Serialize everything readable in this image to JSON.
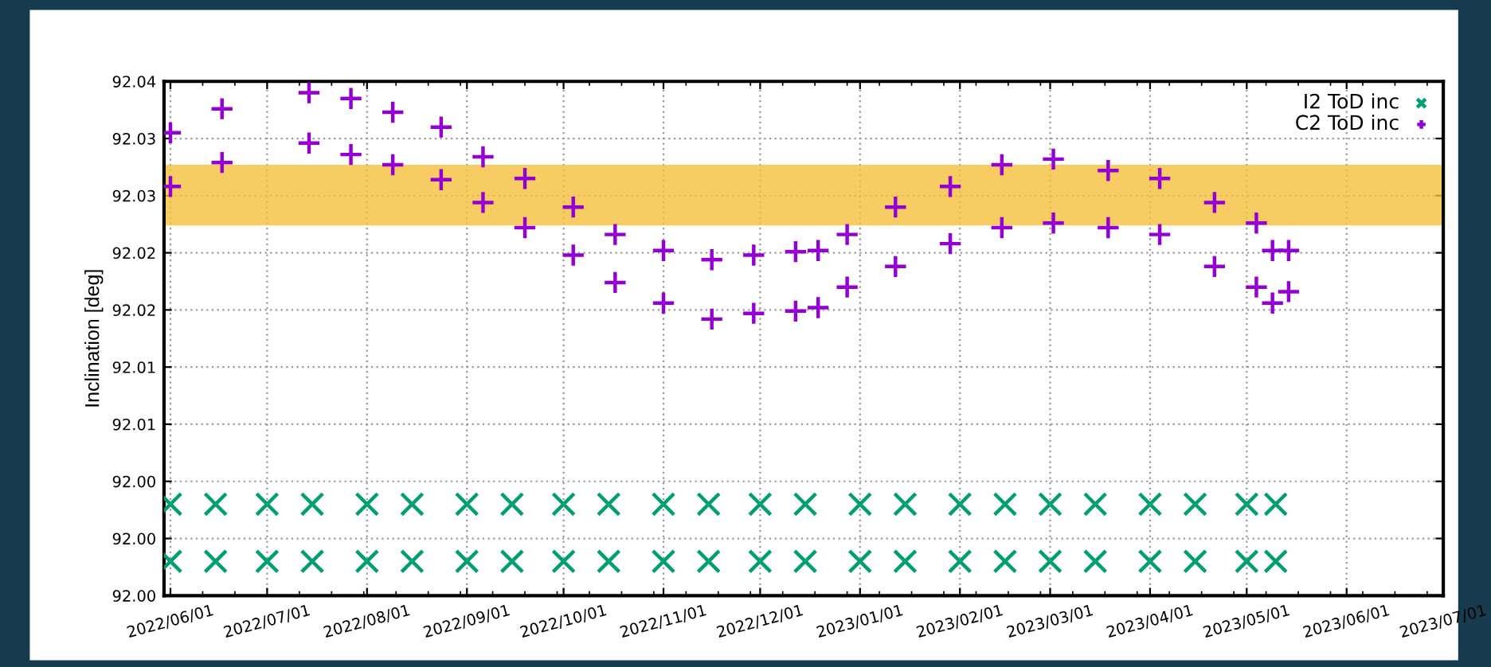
{
  "chart_data": {
    "type": "scatter",
    "ylabel": "Inclination [deg]",
    "xlim": [
      "2022-05-30",
      "2023-07-01"
    ],
    "xticks": [
      {
        "value": "2022-06-01",
        "label": "2022/06/01"
      },
      {
        "value": "2022-07-01",
        "label": "2022/07/01"
      },
      {
        "value": "2022-08-01",
        "label": "2022/08/01"
      },
      {
        "value": "2022-09-01",
        "label": "2022/09/01"
      },
      {
        "value": "2022-10-01",
        "label": "2022/10/01"
      },
      {
        "value": "2022-11-01",
        "label": "2022/11/01"
      },
      {
        "value": "2022-12-01",
        "label": "2022/12/01"
      },
      {
        "value": "2023-01-01",
        "label": "2023/01/01"
      },
      {
        "value": "2023-02-01",
        "label": "2023/02/01"
      },
      {
        "value": "2023-03-01",
        "label": "2023/03/01"
      },
      {
        "value": "2023-04-01",
        "label": "2023/04/01"
      },
      {
        "value": "2023-05-01",
        "label": "2023/05/01"
      },
      {
        "value": "2023-06-01",
        "label": "2023/06/01"
      },
      {
        "value": "2023-07-01",
        "label": "2023/07/01"
      }
    ],
    "ylim": [
      91.995,
      92.04
    ],
    "yticks": [
      {
        "value": 91.995,
        "label": "92.00"
      },
      {
        "value": 92.0,
        "label": "92.00"
      },
      {
        "value": 92.005,
        "label": "92.00"
      },
      {
        "value": 92.01,
        "label": "92.01"
      },
      {
        "value": 92.015,
        "label": "92.01"
      },
      {
        "value": 92.02,
        "label": "92.02"
      },
      {
        "value": 92.025,
        "label": "92.02"
      },
      {
        "value": 92.03,
        "label": "92.03"
      },
      {
        "value": 92.035,
        "label": "92.03"
      },
      92.04
    ],
    "grid": true,
    "legend": "top right",
    "bands": [
      {
        "axis": "y",
        "from": 92.0274,
        "to": 92.0327,
        "color": "#f5c13c"
      }
    ],
    "series": [
      {
        "name": "I2 ToD inc",
        "color": "#009e73",
        "marker": "cross",
        "x": [
          "2022-06-01",
          "2022-06-01",
          "2022-06-15",
          "2022-06-15",
          "2022-07-01",
          "2022-07-01",
          "2022-07-15",
          "2022-07-15",
          "2022-08-01",
          "2022-08-01",
          "2022-08-15",
          "2022-08-15",
          "2022-09-01",
          "2022-09-01",
          "2022-09-15",
          "2022-09-15",
          "2022-10-01",
          "2022-10-01",
          "2022-10-15",
          "2022-10-15",
          "2022-11-01",
          "2022-11-01",
          "2022-11-15",
          "2022-11-15",
          "2022-12-01",
          "2022-12-01",
          "2022-12-15",
          "2022-12-15",
          "2023-01-01",
          "2023-01-01",
          "2023-01-15",
          "2023-01-15",
          "2023-02-01",
          "2023-02-01",
          "2023-02-15",
          "2023-02-15",
          "2023-03-01",
          "2023-03-01",
          "2023-03-15",
          "2023-03-15",
          "2023-04-01",
          "2023-04-01",
          "2023-04-15",
          "2023-04-15",
          "2023-05-01",
          "2023-05-01",
          "2023-05-10",
          "2023-05-10"
        ],
        "values": [
          92.003,
          91.998,
          92.003,
          91.998,
          92.003,
          91.998,
          92.003,
          91.998,
          92.003,
          91.998,
          92.003,
          91.998,
          92.003,
          91.998,
          92.003,
          91.998,
          92.003,
          91.998,
          92.003,
          91.998,
          92.003,
          91.998,
          92.003,
          91.998,
          92.003,
          91.998,
          92.003,
          91.998,
          92.003,
          91.998,
          92.003,
          91.998,
          92.003,
          91.998,
          92.003,
          91.998,
          92.003,
          91.998,
          92.003,
          91.998,
          92.003,
          91.998,
          92.003,
          91.998,
          92.003,
          91.998,
          92.003,
          91.998
        ]
      },
      {
        "name": "C2 ToD inc",
        "color": "#9400d3",
        "marker": "plus",
        "x": [
          "2022-06-01",
          "2022-06-01",
          "2022-06-17",
          "2022-06-17",
          "2022-07-14",
          "2022-07-14",
          "2022-07-27",
          "2022-07-27",
          "2022-08-09",
          "2022-08-09",
          "2022-08-24",
          "2022-08-24",
          "2022-09-06",
          "2022-09-06",
          "2022-09-19",
          "2022-09-19",
          "2022-10-04",
          "2022-10-04",
          "2022-10-17",
          "2022-10-17",
          "2022-11-01",
          "2022-11-01",
          "2022-11-16",
          "2022-11-16",
          "2022-11-29",
          "2022-11-29",
          "2022-12-12",
          "2022-12-12",
          "2022-12-19",
          "2022-12-19",
          "2022-12-28",
          "2022-12-28",
          "2023-01-12",
          "2023-01-12",
          "2023-01-29",
          "2023-01-29",
          "2023-02-14",
          "2023-02-14",
          "2023-03-02",
          "2023-03-02",
          "2023-03-19",
          "2023-03-19",
          "2023-04-04",
          "2023-04-04",
          "2023-04-21",
          "2023-04-21",
          "2023-05-04",
          "2023-05-04",
          "2023-05-09",
          "2023-05-09",
          "2023-05-14",
          "2023-05-14"
        ],
        "values": [
          92.0355,
          92.0308,
          92.0376,
          92.0329,
          92.039,
          92.0346,
          92.0385,
          92.0336,
          92.0373,
          92.0327,
          92.036,
          92.0314,
          92.0334,
          92.0294,
          92.0315,
          92.0272,
          92.029,
          92.0248,
          92.0266,
          92.0224,
          92.0252,
          92.0206,
          92.0244,
          92.0192,
          92.0248,
          92.0197,
          92.0251,
          92.0199,
          92.0252,
          92.0202,
          92.0266,
          92.022,
          92.029,
          92.0238,
          92.0308,
          92.0258,
          92.0327,
          92.0272,
          92.0332,
          92.0276,
          92.0322,
          92.0272,
          92.0315,
          92.0266,
          92.0294,
          92.0238,
          92.0276,
          92.022,
          92.0252,
          92.0206,
          92.0252,
          92.0216
        ]
      }
    ]
  }
}
